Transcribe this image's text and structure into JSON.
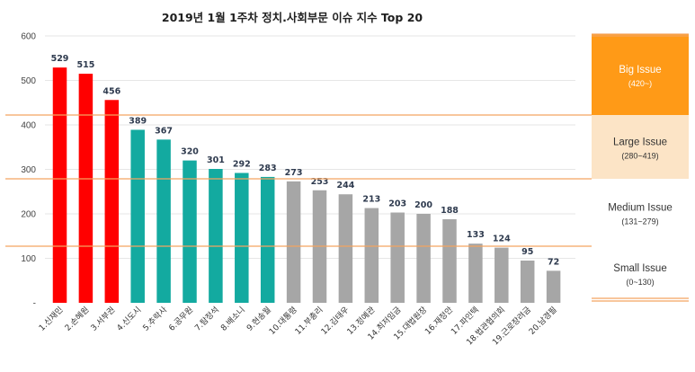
{
  "chart_data": {
    "type": "bar",
    "title": "2019년 1월 1주차 정치.사회부문 이슈 지수 Top 20",
    "xlabel": "",
    "ylabel": "",
    "ylim": [
      0,
      600
    ],
    "yticks": [
      "-",
      "100",
      "200",
      "300",
      "400",
      "500",
      "600"
    ],
    "categories": [
      "1.신재민",
      "2.손혜원",
      "3.서부권",
      "4.신도시",
      "5.추락사",
      "6.공무원",
      "7.탐정석",
      "8.배소니",
      "9.현송월",
      "10.대통령",
      "11.부총리",
      "12.김태우",
      "13.정예관",
      "14.최저임금",
      "15.대법원장",
      "16.재정안",
      "17.파인텍",
      "18.법관협의회",
      "19.근로장려금",
      "20.남경필"
    ],
    "values": [
      529,
      515,
      456,
      389,
      367,
      320,
      301,
      292,
      283,
      273,
      253,
      244,
      213,
      203,
      200,
      188,
      133,
      124,
      95,
      72
    ],
    "value_labels": [
      "529",
      "515",
      "456",
      "389",
      "367",
      "320",
      "301",
      "292",
      "283",
      "273",
      "253",
      "244",
      "213",
      "203",
      "200",
      "188",
      "133",
      "124",
      "95",
      "72"
    ],
    "bar_colors": [
      "#ff0000",
      "#ff0000",
      "#ff0000",
      "#13aaa0",
      "#13aaa0",
      "#13aaa0",
      "#13aaa0",
      "#13aaa0",
      "#13aaa0",
      "#a6a6a6",
      "#a6a6a6",
      "#a6a6a6",
      "#a6a6a6",
      "#a6a6a6",
      "#a6a6a6",
      "#a6a6a6",
      "#a6a6a6",
      "#a6a6a6",
      "#a6a6a6",
      "#a6a6a6"
    ],
    "grid": true,
    "threshold_lines": [
      420,
      280,
      131
    ],
    "threshold_color": "#f4a460",
    "tiers": [
      {
        "name": "Big Issue",
        "range": "(420~)",
        "bg": "#ff9a17",
        "fg": "#ffffff",
        "from": 420,
        "to": 600
      },
      {
        "name": "Large Issue",
        "range": "(280~419)",
        "bg": "#fce4c6",
        "fg": "#333333",
        "from": 280,
        "to": 420
      },
      {
        "name": "Medium Issue",
        "range": "(131~279)",
        "bg": "#ffffff",
        "fg": "#333333",
        "from": 131,
        "to": 280
      },
      {
        "name": "Small Issue",
        "range": "(0~130)",
        "bg": "#ffffff",
        "fg": "#333333",
        "from": 0,
        "to": 131
      }
    ]
  }
}
